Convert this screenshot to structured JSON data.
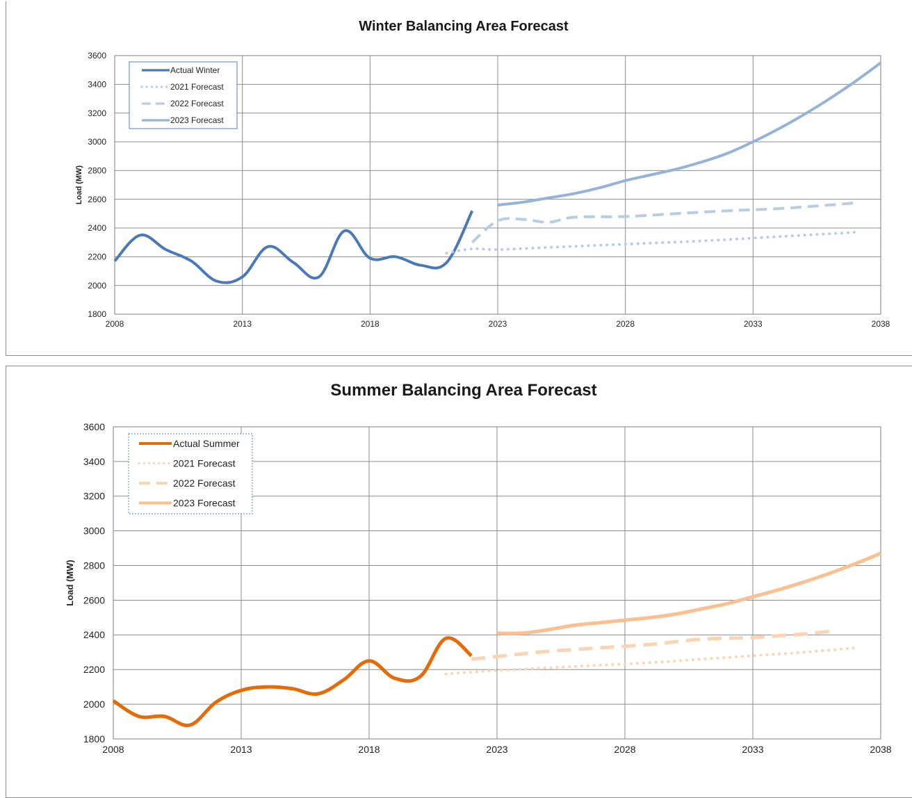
{
  "chart_data": [
    {
      "type": "line",
      "title": "Winter Balancing Area Forecast",
      "xlabel": "",
      "ylabel": "Load (MW)",
      "xlim": [
        2008,
        2038
      ],
      "ylim": [
        1800,
        3600
      ],
      "xticks": [
        2008,
        2013,
        2018,
        2023,
        2028,
        2033,
        2038
      ],
      "yticks": [
        1800,
        2000,
        2200,
        2400,
        2600,
        2800,
        3000,
        3200,
        3400,
        3600
      ],
      "grid": true,
      "legend": "top-left",
      "series": [
        {
          "name": "Actual Winter",
          "color": "#4a7ab5",
          "style": "solid",
          "width": 4,
          "x": [
            2008,
            2009,
            2010,
            2011,
            2012,
            2013,
            2014,
            2015,
            2016,
            2017,
            2018,
            2019,
            2020,
            2021,
            2022
          ],
          "y": [
            2170,
            2350,
            2250,
            2170,
            2030,
            2060,
            2270,
            2160,
            2060,
            2380,
            2190,
            2200,
            2140,
            2160,
            2520
          ]
        },
        {
          "name": "2021 Forecast",
          "color": "#b8cce4",
          "style": "dotted",
          "width": 4,
          "x": [
            2021,
            2022,
            2023,
            2025,
            2027,
            2029,
            2031,
            2033,
            2035,
            2037
          ],
          "y": [
            2225,
            2255,
            2250,
            2265,
            2280,
            2295,
            2310,
            2330,
            2350,
            2370
          ]
        },
        {
          "name": "2022 Forecast",
          "color": "#b8cce4",
          "style": "dashed",
          "width": 4,
          "x": [
            2022,
            2023,
            2024,
            2025,
            2026,
            2028,
            2030,
            2032,
            2034,
            2036,
            2037
          ],
          "y": [
            2300,
            2450,
            2460,
            2440,
            2475,
            2480,
            2500,
            2520,
            2535,
            2560,
            2575
          ]
        },
        {
          "name": "2023 Forecast",
          "color": "#95b3d7",
          "style": "solid",
          "width": 4,
          "x": [
            2023,
            2024,
            2025,
            2026,
            2027,
            2028,
            2029,
            2030,
            2031,
            2032,
            2033,
            2034,
            2035,
            2036,
            2037,
            2038
          ],
          "y": [
            2560,
            2580,
            2610,
            2640,
            2680,
            2730,
            2770,
            2810,
            2860,
            2920,
            3000,
            3090,
            3190,
            3300,
            3420,
            3550
          ]
        }
      ]
    },
    {
      "type": "line",
      "title": "Summer Balancing Area Forecast",
      "xlabel": "",
      "ylabel": "Load (MW)",
      "xlim": [
        2008,
        2038
      ],
      "ylim": [
        1800,
        3600
      ],
      "xticks": [
        2008,
        2013,
        2018,
        2023,
        2028,
        2033,
        2038
      ],
      "yticks": [
        1800,
        2000,
        2200,
        2400,
        2600,
        2800,
        3000,
        3200,
        3400,
        3600
      ],
      "grid": true,
      "legend": "top-left",
      "series": [
        {
          "name": "Actual Summer",
          "color": "#e36c09",
          "style": "solid",
          "width": 5,
          "x": [
            2008,
            2009,
            2010,
            2011,
            2012,
            2013,
            2014,
            2015,
            2016,
            2017,
            2018,
            2019,
            2020,
            2021,
            2022
          ],
          "y": [
            2020,
            1930,
            1930,
            1880,
            2010,
            2080,
            2100,
            2090,
            2060,
            2140,
            2250,
            2150,
            2160,
            2380,
            2280
          ]
        },
        {
          "name": "2021 Forecast",
          "color": "#fbd4b4",
          "style": "dotted",
          "width": 4,
          "x": [
            2021,
            2023,
            2025,
            2027,
            2029,
            2031,
            2033,
            2035,
            2037
          ],
          "y": [
            2175,
            2195,
            2210,
            2225,
            2240,
            2260,
            2280,
            2300,
            2325
          ]
        },
        {
          "name": "2022 Forecast",
          "color": "#fbd4b4",
          "style": "dashed",
          "width": 5,
          "x": [
            2022,
            2023,
            2025,
            2027,
            2029,
            2031,
            2033,
            2034,
            2035,
            2036
          ],
          "y": [
            2260,
            2275,
            2305,
            2325,
            2345,
            2375,
            2385,
            2395,
            2405,
            2420
          ]
        },
        {
          "name": "2023 Forecast",
          "color": "#fac090",
          "style": "solid",
          "width": 5,
          "x": [
            2023,
            2024,
            2025,
            2026,
            2027,
            2028,
            2029,
            2030,
            2031,
            2032,
            2033,
            2034,
            2035,
            2036,
            2037,
            2038
          ],
          "y": [
            2410,
            2410,
            2430,
            2455,
            2470,
            2485,
            2500,
            2520,
            2550,
            2580,
            2620,
            2660,
            2705,
            2755,
            2810,
            2870
          ]
        }
      ]
    }
  ]
}
